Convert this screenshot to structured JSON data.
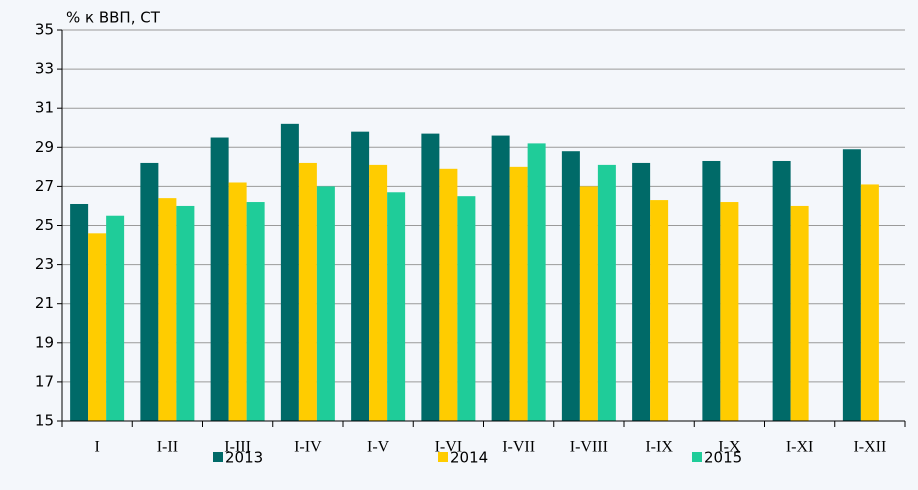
{
  "chart_data": {
    "type": "bar",
    "y_axis_label": "% к ВВП, СТ",
    "categories": [
      "I",
      "I-II",
      "I-III",
      "I-IV",
      "I-V",
      "I-VI",
      "I-VII",
      "I-VIII",
      "I-IX",
      "I-X",
      "I-XI",
      "I-XII"
    ],
    "series": [
      {
        "name": "2013",
        "color": "#006a68",
        "values": [
          26.1,
          28.2,
          29.5,
          30.2,
          29.8,
          29.7,
          29.6,
          28.8,
          28.2,
          28.3,
          28.3,
          28.9
        ]
      },
      {
        "name": "2014",
        "color": "#ffcc00",
        "values": [
          24.6,
          26.4,
          27.2,
          28.2,
          28.1,
          27.9,
          28.0,
          27.0,
          26.3,
          26.2,
          26.0,
          27.1
        ]
      },
      {
        "name": "2015",
        "color": "#1fcc99",
        "values": [
          25.5,
          26.0,
          26.2,
          27.0,
          26.7,
          26.5,
          29.2,
          28.1,
          null,
          null,
          null,
          null
        ]
      }
    ],
    "ylim": [
      15,
      35
    ],
    "yticks": [
      15,
      17,
      19,
      21,
      23,
      25,
      27,
      29,
      31,
      33,
      35
    ],
    "grid": true,
    "legend": "bottom"
  }
}
